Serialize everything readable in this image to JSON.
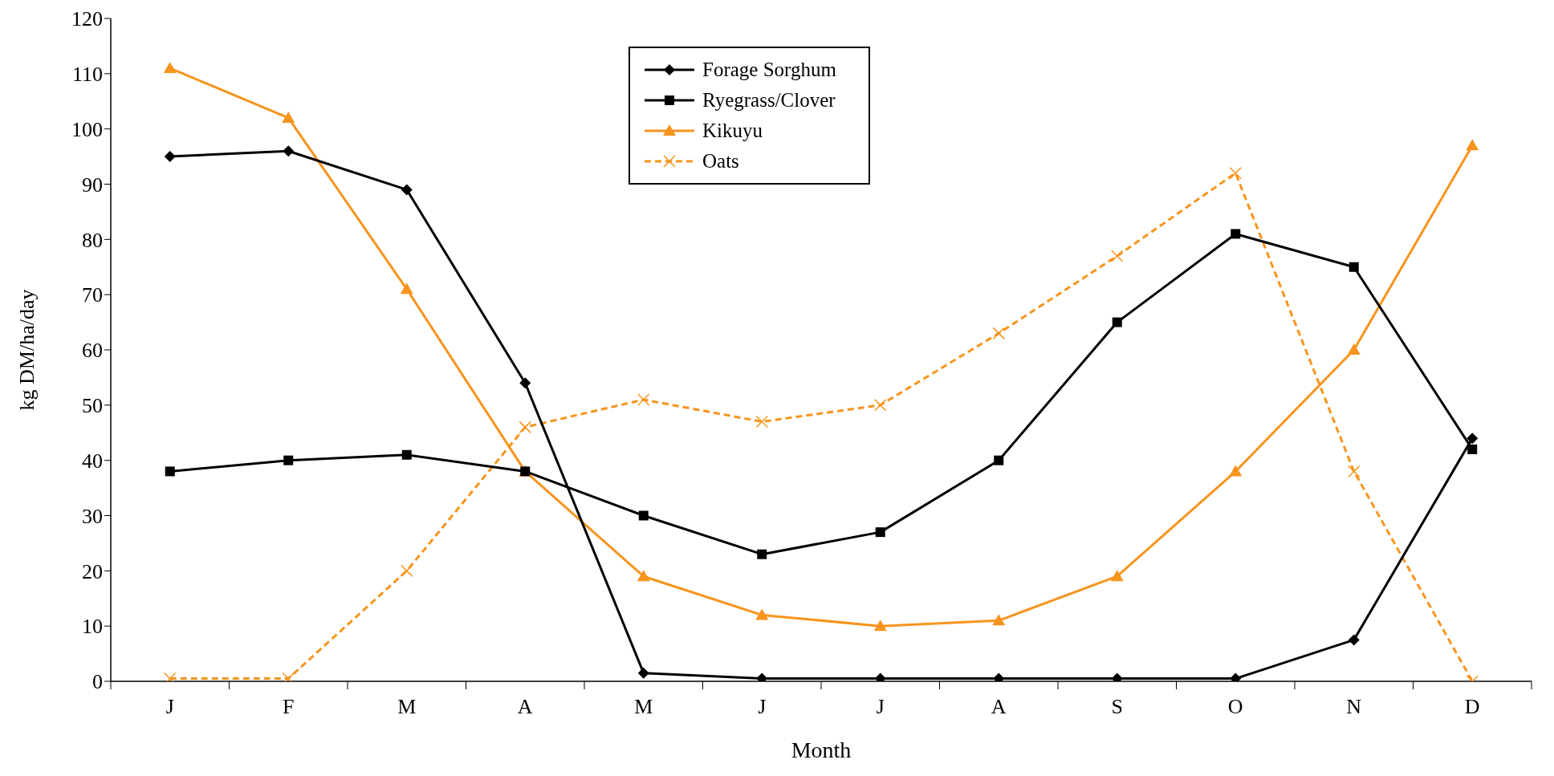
{
  "chart_data": {
    "type": "line",
    "xlabel": "Month",
    "ylabel": "kg DM/ha/day",
    "categories": [
      "J",
      "F",
      "M",
      "A",
      "M",
      "J",
      "J",
      "A",
      "S",
      "O",
      "N",
      "D"
    ],
    "series": [
      {
        "name": "Forage Sorghum",
        "color": "#000000",
        "marker": "diamond",
        "line_style": "solid",
        "values": [
          95,
          96,
          89,
          54,
          1.5,
          0.5,
          0.5,
          0.5,
          0.5,
          0.5,
          7.5,
          44
        ]
      },
      {
        "name": "Ryegrass/Clover",
        "color": "#000000",
        "marker": "square",
        "line_style": "solid",
        "values": [
          38,
          40,
          41,
          38,
          30,
          23,
          27,
          40,
          65,
          81,
          75,
          42
        ]
      },
      {
        "name": "Kikuyu",
        "color": "#f7941d",
        "marker": "triangle",
        "line_style": "solid",
        "values": [
          111,
          102,
          71,
          38,
          19,
          12,
          10,
          11,
          19,
          38,
          60,
          97
        ]
      },
      {
        "name": "Oats",
        "color": "#f7941d",
        "marker": "cross",
        "line_style": "dashed",
        "values": [
          0.5,
          0.5,
          20,
          46,
          51,
          47,
          50,
          63,
          77,
          92,
          38,
          0
        ]
      }
    ],
    "ylim": [
      0,
      120
    ],
    "yticks": [
      0,
      10,
      20,
      30,
      40,
      50,
      60,
      70,
      80,
      90,
      100,
      110,
      120
    ],
    "grid": false,
    "legend": "top"
  }
}
